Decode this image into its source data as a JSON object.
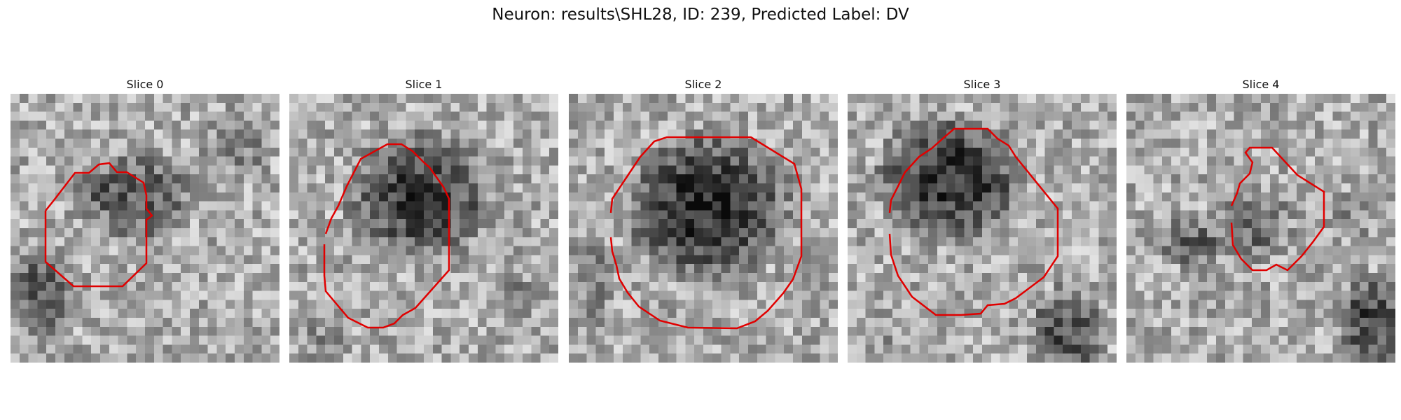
{
  "figure": {
    "title": "Neuron: results\\SHL28, ID: 239, Predicted Label: DV",
    "contour_color": "#e00000",
    "colormap": "gray"
  },
  "slices": [
    {
      "title": "Slice 0"
    },
    {
      "title": "Slice 1"
    },
    {
      "title": "Slice 2"
    },
    {
      "title": "Slice 3"
    },
    {
      "title": "Slice 4"
    }
  ]
}
